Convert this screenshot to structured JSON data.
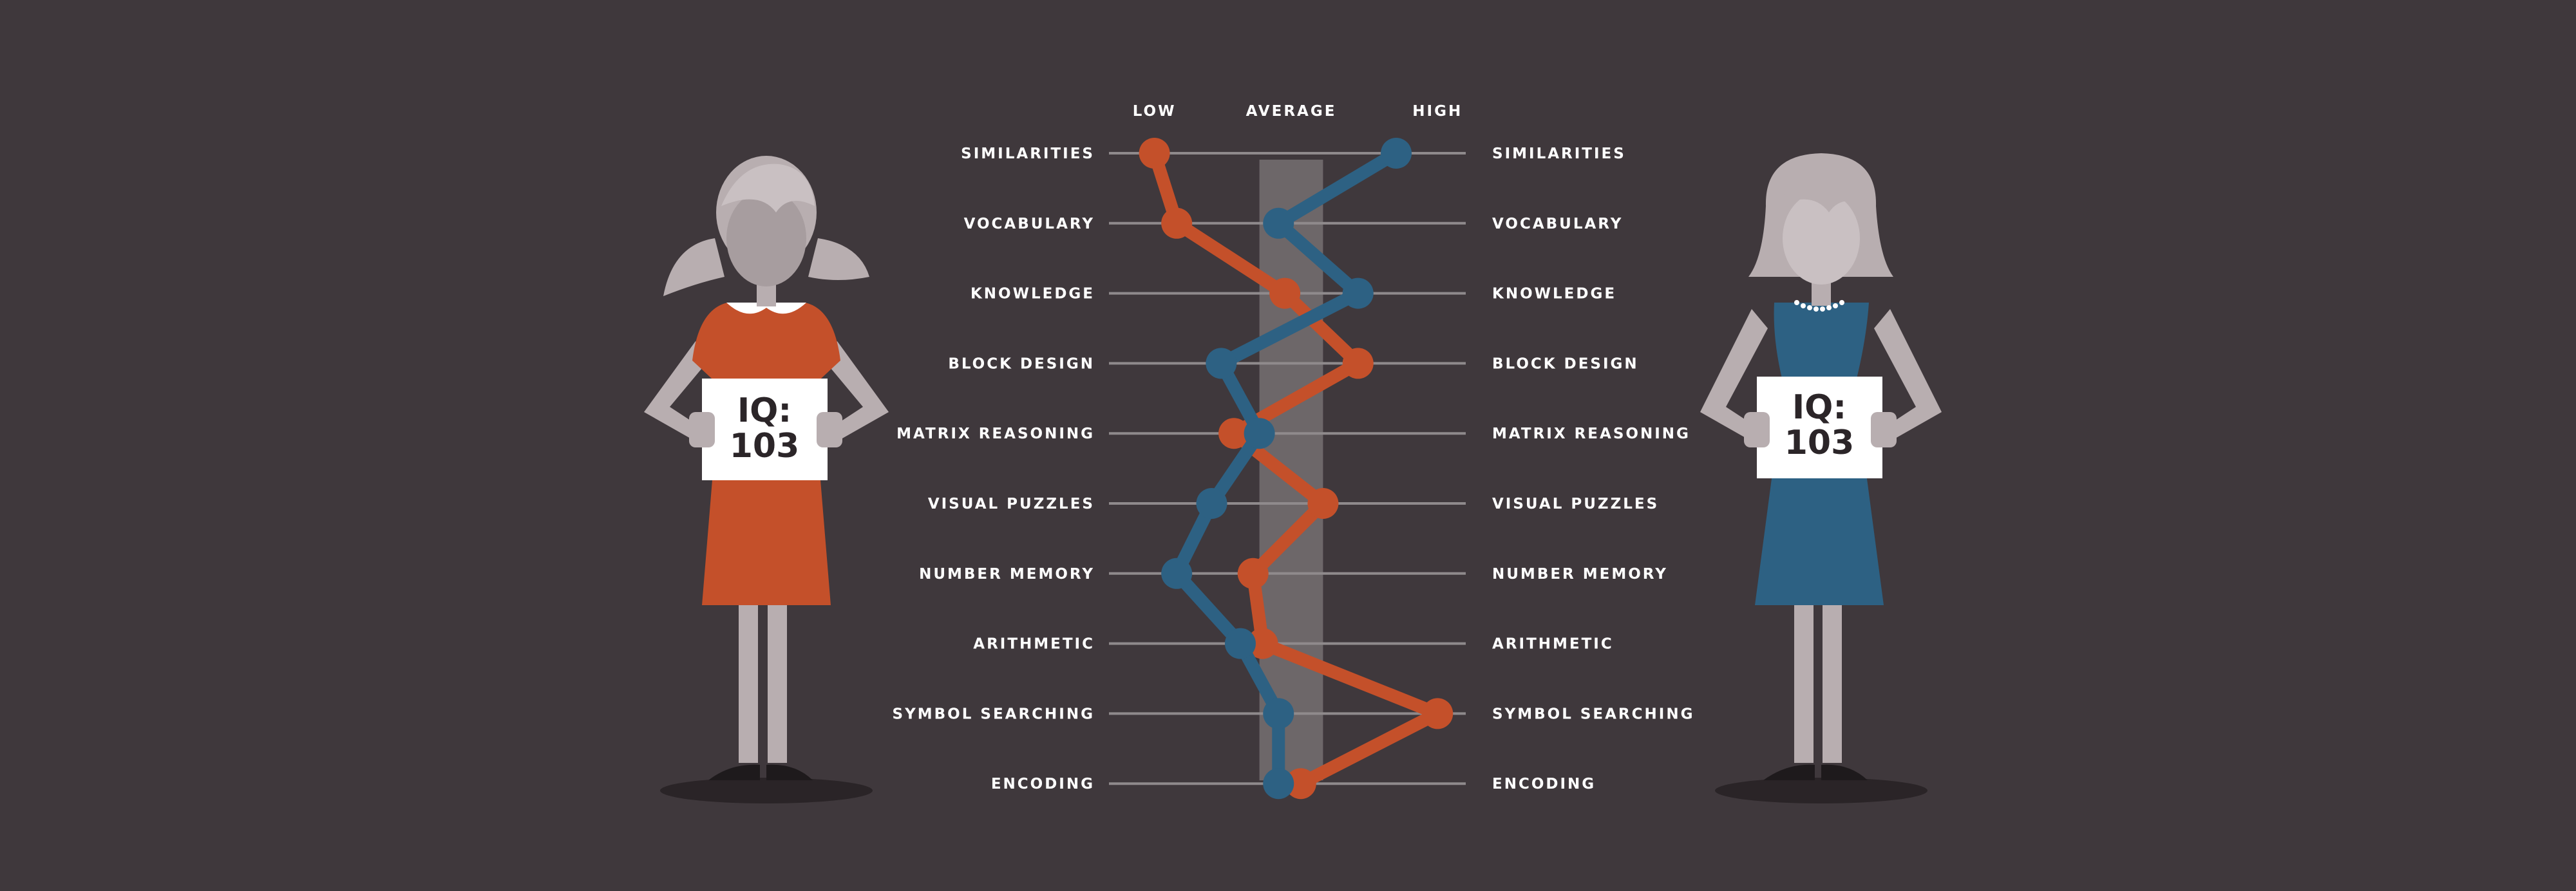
{
  "chart_data": {
    "type": "line",
    "x_scale_labels": [
      "LOW",
      "AVERAGE",
      "HIGH"
    ],
    "xlim": [
      0,
      10
    ],
    "categories": [
      "SIMILARITIES",
      "VOCABULARY",
      "KNOWLEDGE",
      "BLOCK DESIGN",
      "MATRIX REASONING",
      "VISUAL PUZZLES",
      "NUMBER MEMORY",
      "ARITHMETIC",
      "SYMBOL SEARCHING",
      "ENCODING"
    ],
    "average_band": [
      4.0,
      6.0
    ],
    "series": [
      {
        "color": "#c4502a",
        "values": [
          0.7,
          1.4,
          4.8,
          7.1,
          3.2,
          6.0,
          3.8,
          4.1,
          9.6,
          5.3
        ]
      },
      {
        "color": "#2d6183",
        "values": [
          8.3,
          4.6,
          7.1,
          2.8,
          4.0,
          2.5,
          1.4,
          3.4,
          4.6,
          4.6
        ]
      }
    ]
  },
  "figures": {
    "left": {
      "sign_line1": "IQ:",
      "sign_line2": "103",
      "dress_color": "#c4502a"
    },
    "right": {
      "sign_line1": "IQ:",
      "sign_line2": "103",
      "dress_color": "#2d6183"
    }
  },
  "colors": {
    "background": "#3f383c",
    "grid": "#8f8a8c",
    "band": "#6d6769",
    "skin": "#b8aeb0"
  }
}
